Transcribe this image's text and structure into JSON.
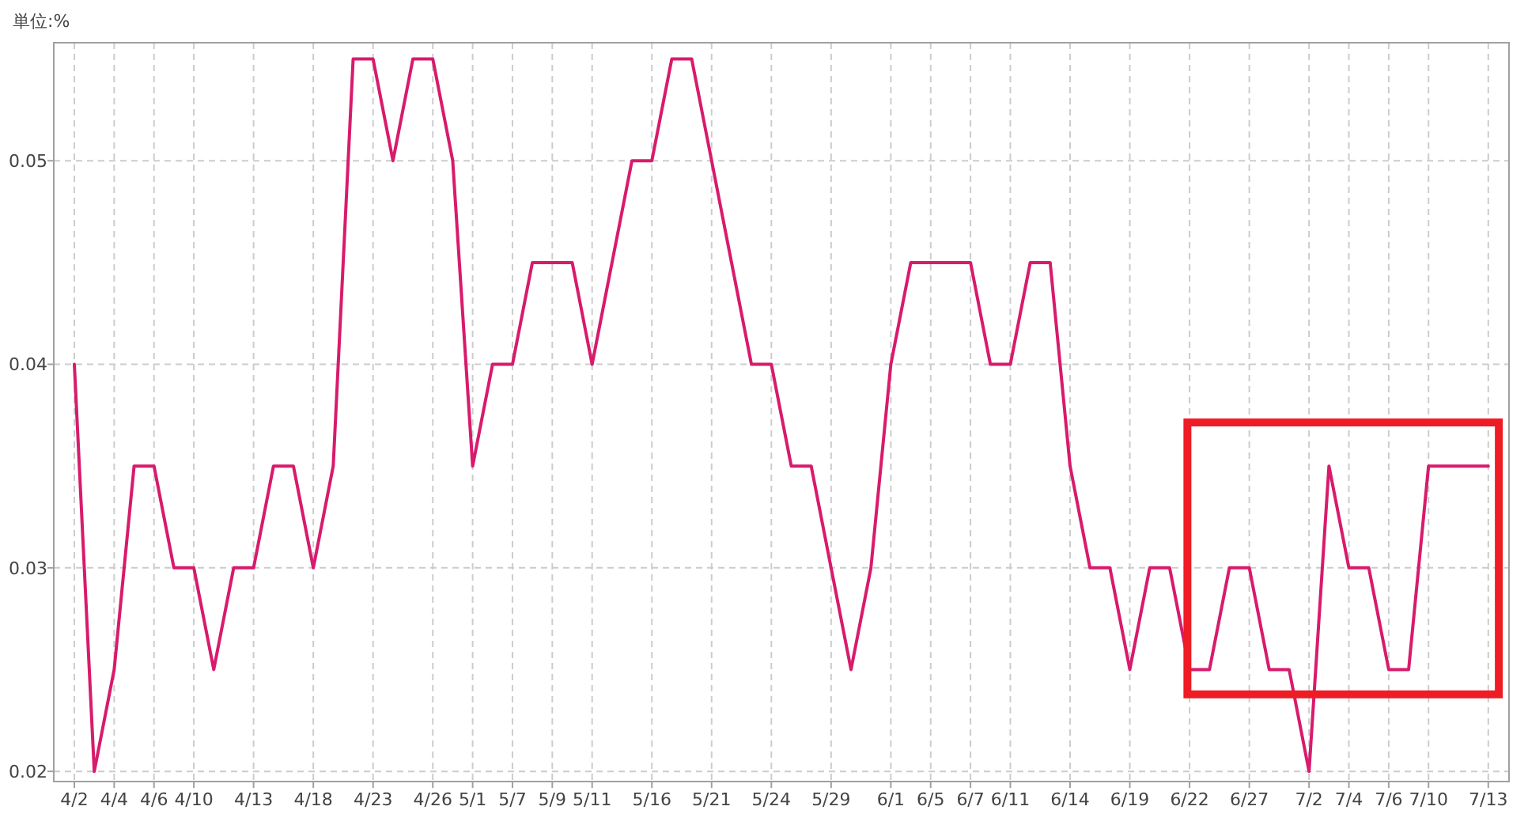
{
  "chart_data": {
    "type": "line",
    "ylabel": "単位:%",
    "categories": [
      "4/2",
      null,
      "4/4",
      null,
      "4/6",
      null,
      "4/10",
      null,
      null,
      "4/13",
      null,
      null,
      "4/18",
      null,
      null,
      "4/23",
      null,
      null,
      "4/26",
      null,
      "5/1",
      null,
      "5/7",
      null,
      "5/9",
      null,
      "5/11",
      null,
      null,
      "5/16",
      null,
      null,
      "5/21",
      null,
      null,
      "5/24",
      null,
      null,
      "5/29",
      null,
      null,
      "6/1",
      null,
      "6/5",
      null,
      "6/7",
      null,
      "6/11",
      null,
      null,
      "6/14",
      null,
      null,
      "6/19",
      null,
      null,
      "6/22",
      null,
      null,
      "6/27",
      null,
      null,
      "7/2",
      null,
      "7/4",
      null,
      "7/6",
      null,
      "7/10",
      null,
      null,
      "7/13"
    ],
    "series": [
      {
        "color": "#d81b6c",
        "values": [
          0.04,
          0.02,
          0.025,
          0.035,
          0.035,
          0.03,
          0.03,
          0.025,
          0.03,
          0.03,
          0.035,
          0.035,
          0.03,
          0.035,
          0.055,
          0.055,
          0.05,
          0.055,
          0.055,
          0.05,
          0.035,
          0.04,
          0.04,
          0.045,
          0.045,
          0.045,
          0.04,
          0.045,
          0.05,
          0.05,
          0.055,
          0.055,
          0.05,
          0.045,
          0.04,
          0.04,
          0.035,
          0.035,
          0.03,
          0.025,
          0.03,
          0.04,
          0.045,
          0.045,
          0.045,
          0.045,
          0.04,
          0.04,
          0.045,
          0.045,
          0.035,
          0.03,
          0.03,
          0.025,
          0.03,
          0.03,
          0.025,
          0.025,
          0.03,
          0.03,
          0.025,
          0.025,
          0.02,
          0.035,
          0.03,
          0.03,
          0.025,
          0.025,
          0.035,
          0.035,
          0.035,
          0.035
        ]
      }
    ],
    "ylim": [
      0.0195,
      0.0558
    ],
    "yticks": [
      0.02,
      0.03,
      0.04,
      0.05
    ],
    "grid": true
  }
}
